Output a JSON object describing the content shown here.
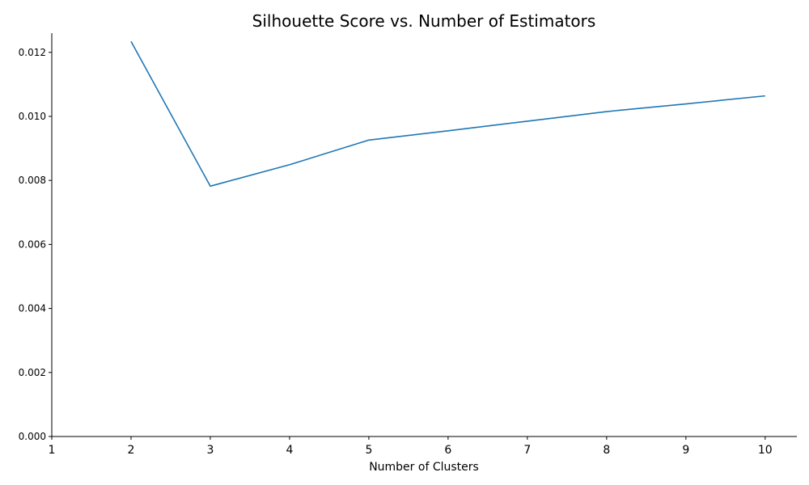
{
  "chart_data": {
    "type": "line",
    "title": "Silhouette Score vs. Number of Estimators",
    "xlabel": "Number of Clusters",
    "ylabel": "",
    "x": [
      2,
      3,
      4,
      5,
      6,
      7,
      8,
      9,
      10
    ],
    "series": [
      {
        "values": [
          0.01234,
          0.00782,
          0.00849,
          0.00926,
          0.00955,
          0.00985,
          0.01015,
          0.01039,
          0.01064
        ],
        "color": "#1f77b4"
      }
    ],
    "xlim": [
      1,
      10.4
    ],
    "ylim": [
      0,
      0.0126
    ],
    "xticks": [
      "1",
      "2",
      "3",
      "4",
      "5",
      "6",
      "7",
      "8",
      "9",
      "10"
    ],
    "yticks": [
      "0.000",
      "0.002",
      "0.004",
      "0.006",
      "0.008",
      "0.010",
      "0.012"
    ],
    "grid": false,
    "legend": "none"
  }
}
